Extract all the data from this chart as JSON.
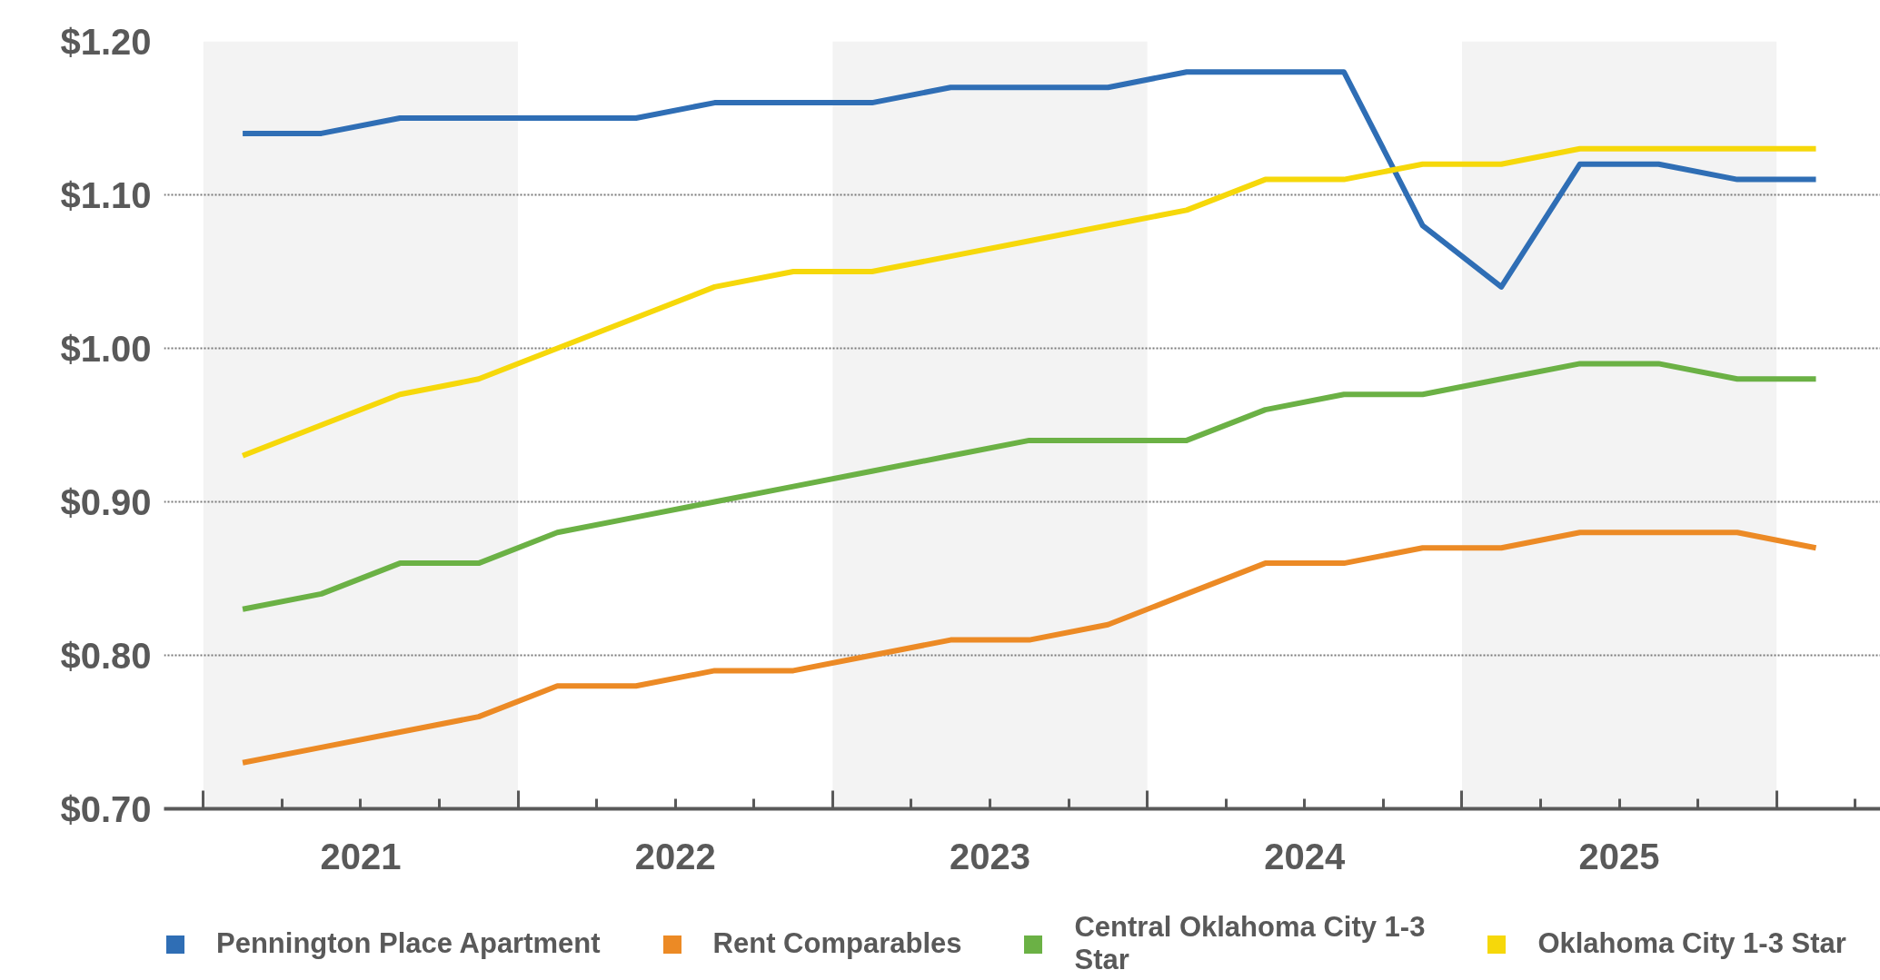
{
  "chart_data": {
    "type": "line",
    "x": [
      2021.125,
      2021.375,
      2021.625,
      2021.875,
      2022.125,
      2022.375,
      2022.625,
      2022.875,
      2023.125,
      2023.375,
      2023.625,
      2023.875,
      2024.125,
      2024.375,
      2024.625,
      2024.875,
      2025.125,
      2025.375,
      2025.625,
      2025.875,
      2026.125
    ],
    "series": [
      {
        "name": "Pennington Place Apartment",
        "color": "#2f6eb5",
        "values": [
          1.14,
          1.14,
          1.15,
          1.15,
          1.15,
          1.15,
          1.16,
          1.16,
          1.16,
          1.17,
          1.17,
          1.17,
          1.18,
          1.18,
          1.18,
          1.08,
          1.04,
          1.12,
          1.12,
          1.11,
          1.11
        ]
      },
      {
        "name": "Rent Comparables",
        "color": "#ec8a25",
        "values": [
          0.73,
          0.74,
          0.75,
          0.76,
          0.78,
          0.78,
          0.79,
          0.79,
          0.8,
          0.81,
          0.81,
          0.82,
          0.84,
          0.86,
          0.86,
          0.87,
          0.87,
          0.88,
          0.88,
          0.88,
          0.87
        ]
      },
      {
        "name": "Central Oklahoma City 1-3 Star",
        "color": "#6bb145",
        "values": [
          0.83,
          0.84,
          0.86,
          0.86,
          0.88,
          0.89,
          0.9,
          0.91,
          0.92,
          0.93,
          0.94,
          0.94,
          0.94,
          0.96,
          0.97,
          0.97,
          0.98,
          0.99,
          0.99,
          0.98,
          0.98
        ]
      },
      {
        "name": "Oklahoma City 1-3 Star",
        "color": "#f6d80a",
        "values": [
          0.93,
          0.95,
          0.97,
          0.98,
          1.0,
          1.02,
          1.04,
          1.05,
          1.05,
          1.06,
          1.07,
          1.08,
          1.09,
          1.11,
          1.11,
          1.12,
          1.12,
          1.13,
          1.13,
          1.13,
          1.13
        ]
      }
    ],
    "xlim": [
      2020.875,
      2026.33
    ],
    "ylim": [
      0.7,
      1.2
    ],
    "xticks": [
      {
        "value": 2021,
        "label": null
      },
      {
        "value": 2021.25,
        "label": null
      },
      {
        "value": 2021.5,
        "label": "2021"
      },
      {
        "value": 2021.75,
        "label": null
      },
      {
        "value": 2022,
        "label": null
      },
      {
        "value": 2022.25,
        "label": null
      },
      {
        "value": 2022.5,
        "label": "2022"
      },
      {
        "value": 2022.75,
        "label": null
      },
      {
        "value": 2023,
        "label": null
      },
      {
        "value": 2023.25,
        "label": null
      },
      {
        "value": 2023.5,
        "label": "2023"
      },
      {
        "value": 2023.75,
        "label": null
      },
      {
        "value": 2024,
        "label": null
      },
      {
        "value": 2024.25,
        "label": null
      },
      {
        "value": 2024.5,
        "label": "2024"
      },
      {
        "value": 2024.75,
        "label": null
      },
      {
        "value": 2025,
        "label": null
      },
      {
        "value": 2025.25,
        "label": null
      },
      {
        "value": 2025.5,
        "label": "2025"
      },
      {
        "value": 2025.75,
        "label": null
      },
      {
        "value": 2026,
        "label": null
      },
      {
        "value": 2026.25,
        "label": null
      }
    ],
    "yticks": [
      {
        "value": 0.7,
        "label": "$0.70"
      },
      {
        "value": 0.8,
        "label": "$0.80"
      },
      {
        "value": 0.9,
        "label": "$0.90"
      },
      {
        "value": 1.0,
        "label": "$1.00"
      },
      {
        "value": 1.1,
        "label": "$1.10"
      },
      {
        "value": 1.2,
        "label": "$1.20"
      }
    ],
    "bands": [
      {
        "axis": "x",
        "from": 2021,
        "to": 2022,
        "color": "#f3f3f3"
      },
      {
        "axis": "x",
        "from": 2023,
        "to": 2024,
        "color": "#f3f3f3"
      },
      {
        "axis": "x",
        "from": 2025,
        "to": 2026,
        "color": "#f3f3f3"
      }
    ],
    "grid": "y",
    "legend": "bottom",
    "line_style": "solid"
  }
}
